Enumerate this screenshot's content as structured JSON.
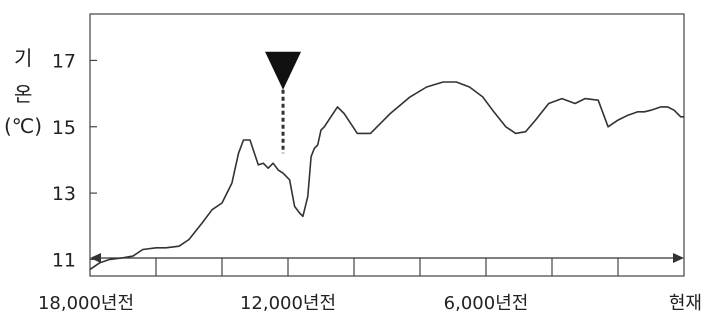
{
  "chart_data": {
    "type": "line",
    "ylabel_lines": [
      "기",
      "온",
      "(℃)"
    ],
    "yticks": [
      11,
      13,
      15,
      17
    ],
    "ylim": [
      10.5,
      18.4
    ],
    "xlim": [
      18000,
      0
    ],
    "xticks": [
      {
        "value": 18000,
        "label": "18,000년전"
      },
      {
        "value": 12000,
        "label": "12,000년전"
      },
      {
        "value": 6000,
        "label": "6,000년전"
      },
      {
        "value": 0,
        "label": "현재"
      }
    ],
    "grid": false,
    "series": [
      {
        "x": [
          18000,
          17700,
          17400,
          17000,
          16700,
          16400,
          16000,
          15700,
          15300,
          15000,
          14600,
          14300,
          14000,
          13700,
          13500,
          13350,
          13150,
          12900,
          12750,
          12600,
          12450,
          12300,
          12150,
          11950,
          11800,
          11650,
          11550,
          11400,
          11300,
          11200,
          11100,
          11000,
          10900,
          10700,
          10500,
          10300,
          10100,
          9900,
          9500,
          8900,
          8300,
          7800,
          7300,
          6900,
          6500,
          6100,
          5800,
          5400,
          5100,
          4800,
          4500,
          4100,
          3700,
          3300,
          3000,
          2600,
          2300,
          2000,
          1700,
          1400,
          1200,
          1000,
          700,
          500,
          300,
          100,
          0
        ],
        "y": [
          10.7,
          10.9,
          11.0,
          11.05,
          11.1,
          11.3,
          11.35,
          11.35,
          11.4,
          11.6,
          12.1,
          12.5,
          12.7,
          13.3,
          14.2,
          14.6,
          14.6,
          13.85,
          13.9,
          13.75,
          13.9,
          13.7,
          13.6,
          13.4,
          12.6,
          12.4,
          12.3,
          12.9,
          14.1,
          14.35,
          14.45,
          14.9,
          15.0,
          15.3,
          15.6,
          15.4,
          15.1,
          14.8,
          14.8,
          15.4,
          15.9,
          16.2,
          16.35,
          16.35,
          16.2,
          15.9,
          15.5,
          15.0,
          14.8,
          14.85,
          15.2,
          15.7,
          15.85,
          15.7,
          15.85,
          15.8,
          15.0,
          15.2,
          15.35,
          15.45,
          15.45,
          15.5,
          15.6,
          15.6,
          15.5,
          15.3,
          15.3
        ]
      }
    ],
    "annotation": {
      "x": 12150,
      "y_top": 17.2,
      "y_line_bottom": 14.2
    },
    "timeline_ticks": [
      16000,
      14000,
      12000,
      10000,
      8000,
      6000,
      4000,
      2000
    ]
  }
}
